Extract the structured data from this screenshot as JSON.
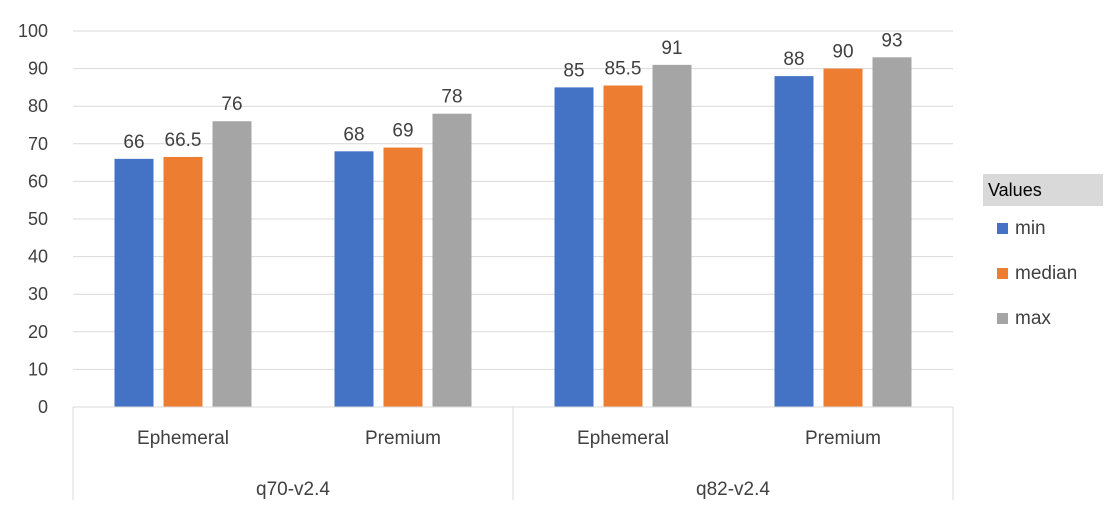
{
  "chart_data": {
    "type": "bar",
    "groups": [
      {
        "label": "q70-v2.4",
        "categories": [
          "Ephemeral",
          "Premium"
        ]
      },
      {
        "label": "q82-v2.4",
        "categories": [
          "Ephemeral",
          "Premium"
        ]
      }
    ],
    "categories": [
      "Ephemeral",
      "Premium",
      "Ephemeral",
      "Premium"
    ],
    "series": [
      {
        "name": "min",
        "color": "#4472c4",
        "values": [
          66,
          68,
          85,
          88
        ],
        "labels": [
          "66",
          "68",
          "85",
          "88"
        ]
      },
      {
        "name": "median",
        "color": "#ed7d31",
        "values": [
          66.5,
          69,
          85.5,
          90
        ],
        "labels": [
          "66.5",
          "69",
          "85.5",
          "90"
        ]
      },
      {
        "name": "max",
        "color": "#a5a5a5",
        "values": [
          76,
          78,
          91,
          93
        ],
        "labels": [
          "76",
          "78",
          "91",
          "93"
        ]
      }
    ],
    "ylim": [
      0,
      100
    ],
    "yticks": [
      "0",
      "10",
      "20",
      "30",
      "40",
      "50",
      "60",
      "70",
      "80",
      "90",
      "100"
    ],
    "grid": true,
    "legend": {
      "title": "Values",
      "position": "right"
    }
  }
}
